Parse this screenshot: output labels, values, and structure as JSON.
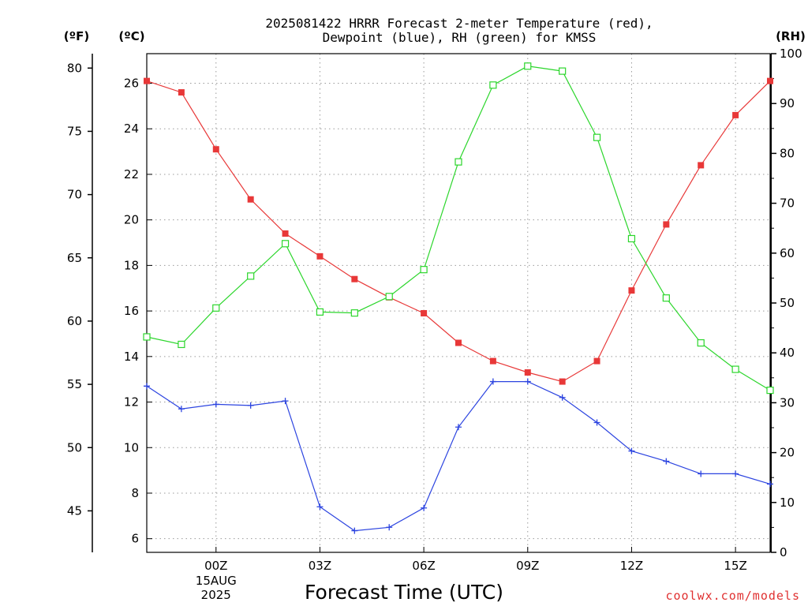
{
  "chart_data": {
    "type": "line",
    "title_lines": [
      "2025081422 HRRR Forecast 2-meter Temperature (red),",
      "Dewpoint (blue), RH (green) for KMSS"
    ],
    "xlabel": "Forecast Time (UTC)",
    "credit": "coolwx.com/models",
    "x_hours": [
      22,
      23,
      24,
      25,
      26,
      27,
      28,
      29,
      30,
      31,
      32,
      33,
      34,
      35,
      36,
      37,
      38,
      39,
      40
    ],
    "x_ticks": [
      {
        "hour": 24,
        "label": "00Z",
        "sub": [
          "15AUG",
          "2025"
        ]
      },
      {
        "hour": 27,
        "label": "03Z"
      },
      {
        "hour": 30,
        "label": "06Z"
      },
      {
        "hour": 33,
        "label": "09Z"
      },
      {
        "hour": 36,
        "label": "12Z"
      },
      {
        "hour": 39,
        "label": "15Z"
      }
    ],
    "axes": {
      "fahrenheit": {
        "label": "(ºF)",
        "ticks": [
          "80",
          "75",
          "70",
          "65",
          "60",
          "55",
          "50",
          "45"
        ]
      },
      "celsius": {
        "label": "(ºC)",
        "range": [
          5.4,
          27.3
        ],
        "ticks": [
          "26",
          "24",
          "22",
          "20",
          "18",
          "16",
          "14",
          "12",
          "10",
          "8",
          "6"
        ]
      },
      "rh": {
        "label": "(RH)",
        "range": [
          0,
          100
        ],
        "ticks": [
          "100",
          "90",
          "80",
          "70",
          "60",
          "50",
          "40",
          "30",
          "20",
          "10",
          "0"
        ]
      }
    },
    "grid": true,
    "series": [
      {
        "name": "Temperature",
        "color": "#e83838",
        "axis": "celsius",
        "marker": "filled-square",
        "values": [
          26.1,
          25.6,
          23.1,
          20.9,
          19.4,
          18.4,
          17.4,
          16.6,
          15.9,
          14.6,
          13.8,
          13.3,
          12.9,
          13.8,
          16.9,
          19.8,
          22.4,
          24.6,
          26.1
        ]
      },
      {
        "name": "Dewpoint",
        "color": "#2c44e0",
        "axis": "celsius",
        "marker": "plus",
        "values": [
          12.7,
          11.7,
          11.9,
          11.85,
          12.05,
          7.4,
          6.35,
          6.5,
          7.35,
          10.9,
          12.9,
          12.9,
          12.2,
          11.1,
          9.85,
          9.4,
          8.85,
          8.85,
          8.4
        ]
      },
      {
        "name": "RH",
        "color": "#2cd62c",
        "axis": "rh",
        "marker": "open-square",
        "values": [
          43.2,
          41.7,
          49.0,
          55.4,
          61.9,
          48.2,
          48.0,
          51.3,
          56.7,
          78.3,
          93.7,
          97.5,
          96.5,
          83.2,
          62.9,
          51.0,
          42.0,
          36.7,
          32.5
        ]
      }
    ]
  }
}
